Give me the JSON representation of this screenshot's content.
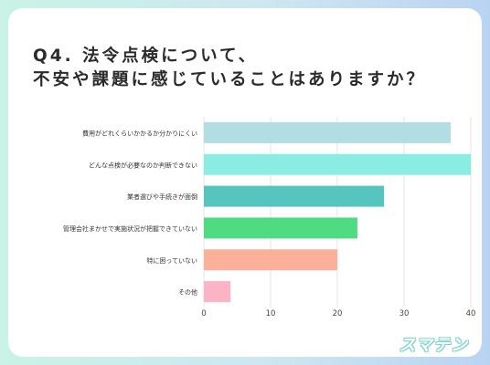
{
  "title": {
    "line1": "Q4. 法令点検について、",
    "line2": "不安や課題に感じていることはありますか？"
  },
  "chart_data": {
    "type": "bar",
    "orientation": "horizontal",
    "categories": [
      "費用がどれくらいかかるか分かりにくい",
      "どんな点検が必要なのか判断できない",
      "業者選びや手続きが面倒",
      "管理会社まかせで実施状況が把握できていない",
      "特に困っていない",
      "その他"
    ],
    "values": [
      37,
      40,
      27,
      23,
      20,
      4
    ],
    "colors": [
      "#b1dde3",
      "#8aede3",
      "#56c4bf",
      "#4fdb81",
      "#fbb09a",
      "#fbb3c5"
    ],
    "xlim": [
      0,
      40
    ],
    "xticks": [
      "0",
      "10",
      "20",
      "30",
      "40"
    ],
    "grid": true
  },
  "logo": {
    "text": "スマテン"
  }
}
